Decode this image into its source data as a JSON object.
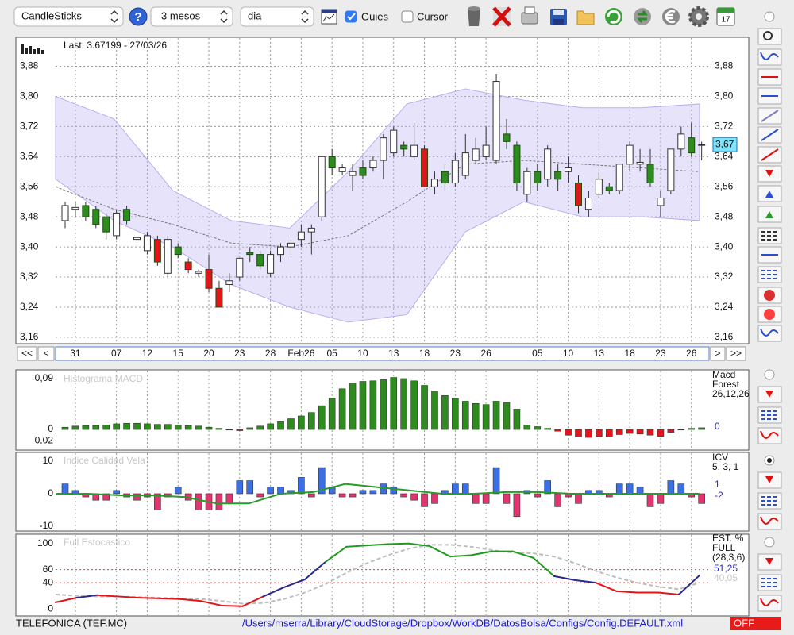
{
  "toolbar": {
    "chart_type": "CandleSticks",
    "help_icon": "?",
    "period": "3 mesos",
    "interval": "dia",
    "guides": "Guies",
    "guides_checked": true,
    "cursor": "Cursor",
    "cursor_checked": false,
    "calendar_day": "17"
  },
  "main": {
    "last": "Last: 3.67199 - 27/03/26",
    "current_label": "3,67",
    "ylim": [
      3.145,
      3.955
    ],
    "yticks": [
      {
        "value": 3.88,
        "label": "3,88"
      },
      {
        "value": 3.8,
        "label": "3,80"
      },
      {
        "value": 3.72,
        "label": "3,72"
      },
      {
        "value": 3.64,
        "label": "3,64"
      },
      {
        "value": 3.56,
        "label": "3,56"
      },
      {
        "value": 3.48,
        "label": "3,48"
      },
      {
        "value": 3.4,
        "label": "3,40"
      },
      {
        "value": 3.32,
        "label": "3,32"
      },
      {
        "value": 3.24,
        "label": "3,24"
      },
      {
        "value": 3.16,
        "label": "3,16"
      }
    ],
    "colors": {
      "up": "#ffffff",
      "down": "#2e8b1e",
      "new_low": "#e3141a",
      "band": "#b9aef0"
    },
    "dates": [
      null,
      "31",
      null,
      null,
      null,
      "07",
      null,
      null,
      "12",
      null,
      null,
      "15",
      null,
      null,
      "20",
      null,
      null,
      "23",
      null,
      null,
      "28",
      null,
      null,
      "Feb26",
      null,
      null,
      "05",
      null,
      null,
      "10",
      null,
      null,
      "13",
      null,
      null,
      "18",
      null,
      null,
      "23",
      null,
      null,
      "26",
      null,
      null,
      null,
      null,
      "05",
      null,
      null,
      "10",
      null,
      null,
      "13",
      null,
      null,
      "18",
      null,
      null,
      "23",
      null,
      null,
      "26",
      null
    ],
    "candles": [
      [
        3.47,
        3.52,
        3.45,
        3.51
      ],
      [
        3.5,
        3.52,
        3.48,
        3.505
      ],
      [
        3.51,
        3.52,
        3.47,
        3.48
      ],
      [
        3.5,
        3.51,
        3.45,
        3.46
      ],
      [
        3.48,
        3.49,
        3.42,
        3.44
      ],
      [
        3.43,
        3.5,
        3.42,
        3.49
      ],
      [
        3.5,
        3.51,
        3.46,
        3.47
      ],
      [
        3.42,
        3.43,
        3.41,
        3.425
      ],
      [
        3.39,
        3.44,
        3.38,
        3.43
      ],
      [
        3.42,
        3.43,
        3.35,
        3.36
      ],
      [
        3.33,
        3.43,
        3.32,
        3.42
      ],
      [
        3.4,
        3.41,
        3.37,
        3.38
      ],
      [
        3.36,
        3.37,
        3.33,
        3.34
      ],
      [
        3.33,
        3.34,
        3.32,
        3.335
      ],
      [
        3.34,
        3.38,
        3.28,
        3.29
      ],
      [
        3.29,
        3.31,
        3.24,
        3.24
      ],
      [
        3.3,
        3.33,
        3.28,
        3.31
      ],
      [
        3.32,
        3.37,
        3.31,
        3.37
      ],
      [
        3.385,
        3.4,
        3.36,
        3.38
      ],
      [
        3.38,
        3.39,
        3.34,
        3.35
      ],
      [
        3.33,
        3.39,
        3.32,
        3.38
      ],
      [
        3.38,
        3.41,
        3.36,
        3.4
      ],
      [
        3.4,
        3.42,
        3.38,
        3.41
      ],
      [
        3.42,
        3.46,
        3.4,
        3.44
      ],
      [
        3.44,
        3.46,
        3.38,
        3.45
      ],
      [
        3.48,
        3.64,
        3.47,
        3.64
      ],
      [
        3.64,
        3.66,
        3.59,
        3.61
      ],
      [
        3.6,
        3.62,
        3.59,
        3.61
      ],
      [
        3.59,
        3.62,
        3.55,
        3.6
      ],
      [
        3.61,
        3.63,
        3.58,
        3.59
      ],
      [
        3.61,
        3.64,
        3.6,
        3.63
      ],
      [
        3.63,
        3.7,
        3.58,
        3.69
      ],
      [
        3.65,
        3.72,
        3.64,
        3.71
      ],
      [
        3.67,
        3.68,
        3.64,
        3.66
      ],
      [
        3.64,
        3.73,
        3.63,
        3.67
      ],
      [
        3.66,
        3.67,
        3.56,
        3.56
      ],
      [
        3.56,
        3.6,
        3.54,
        3.58
      ],
      [
        3.6,
        3.62,
        3.55,
        3.57
      ],
      [
        3.57,
        3.65,
        3.56,
        3.63
      ],
      [
        3.59,
        3.7,
        3.58,
        3.65
      ],
      [
        3.63,
        3.69,
        3.62,
        3.66
      ],
      [
        3.64,
        3.72,
        3.63,
        3.67
      ],
      [
        3.63,
        3.86,
        3.62,
        3.84
      ],
      [
        3.7,
        3.74,
        3.66,
        3.68
      ],
      [
        3.67,
        3.68,
        3.55,
        3.57
      ],
      [
        3.54,
        3.61,
        3.52,
        3.6
      ],
      [
        3.6,
        3.62,
        3.55,
        3.57
      ],
      [
        3.58,
        3.67,
        3.56,
        3.66
      ],
      [
        3.6,
        3.62,
        3.55,
        3.58
      ],
      [
        3.6,
        3.64,
        3.57,
        3.61
      ],
      [
        3.57,
        3.59,
        3.49,
        3.51
      ],
      [
        3.5,
        3.55,
        3.48,
        3.53
      ],
      [
        3.54,
        3.6,
        3.53,
        3.58
      ],
      [
        3.56,
        3.57,
        3.54,
        3.55
      ],
      [
        3.55,
        3.62,
        3.54,
        3.62
      ],
      [
        3.62,
        3.68,
        3.6,
        3.67
      ],
      [
        3.62,
        3.66,
        3.6,
        3.625
      ],
      [
        3.62,
        3.66,
        3.56,
        3.57
      ],
      [
        3.51,
        3.55,
        3.48,
        3.53
      ],
      [
        3.55,
        3.66,
        3.54,
        3.66
      ],
      [
        3.66,
        3.72,
        3.64,
        3.7
      ],
      [
        3.69,
        3.73,
        3.64,
        3.65
      ],
      [
        3.67,
        3.68,
        3.63,
        3.672
      ]
    ],
    "bands": {
      "upper": [
        3.8,
        3.74,
        3.55,
        3.47,
        3.45,
        3.6,
        3.78,
        3.82,
        3.79,
        3.77,
        3.77,
        3.78
      ],
      "middle": [
        3.56,
        3.5,
        3.46,
        3.41,
        3.4,
        3.43,
        3.52,
        3.62,
        3.63,
        3.62,
        3.61,
        3.6
      ],
      "lower": [
        3.58,
        3.47,
        3.4,
        3.3,
        3.24,
        3.2,
        3.22,
        3.44,
        3.52,
        3.48,
        3.48,
        3.47
      ]
    }
  },
  "nav": {
    "first": "<<",
    "prev": "<",
    "next": ">",
    "last": ">>"
  },
  "macd": {
    "title": "Histograma MACD",
    "legend": [
      "Macd",
      "Forest",
      "26,12,26"
    ],
    "last_label": "0",
    "ylim": [
      -0.035,
      0.104
    ],
    "yticks": [
      {
        "value": 0.09,
        "label": "0,09"
      },
      0,
      {
        "value": -0.02,
        "label": "-0,02"
      }
    ],
    "colors": {
      "positive": "#2e8b1e",
      "negative": "#e3141a"
    },
    "values": [
      0.004,
      0.006,
      0.007,
      0.007,
      0.008,
      0.01,
      0.011,
      0.011,
      0.01,
      0.009,
      0.009,
      0.008,
      0.007,
      0.006,
      0.004,
      0.002,
      -0.001,
      -0.002,
      0.003,
      0.006,
      0.01,
      0.014,
      0.019,
      0.024,
      0.03,
      0.042,
      0.055,
      0.072,
      0.082,
      0.085,
      0.086,
      0.088,
      0.092,
      0.09,
      0.086,
      0.078,
      0.068,
      0.06,
      0.055,
      0.05,
      0.046,
      0.044,
      0.05,
      0.048,
      0.036,
      0.008,
      0.005,
      0.002,
      -0.003,
      -0.01,
      -0.013,
      -0.014,
      -0.012,
      -0.013,
      -0.009,
      -0.007,
      -0.008,
      -0.01,
      -0.012,
      -0.005,
      -0.001,
      0.002,
      0.003
    ]
  },
  "icv": {
    "title": "Indice Calidad Vela",
    "legend": [
      "ICV",
      "5, 3, 1"
    ],
    "last_labels": [
      "1",
      "-2"
    ],
    "ylim": [
      -11.2,
      12.4
    ],
    "yticks": [
      10,
      0,
      -10
    ],
    "colors": {
      "positive": "#3b6fe3",
      "negative": "#e23470",
      "line": "#2a9a2a"
    },
    "values": [
      3,
      1,
      -1,
      -2,
      -2,
      1,
      -1,
      -2,
      -1,
      -5,
      -1,
      2,
      -2,
      -5,
      -5,
      -5,
      -3,
      4,
      4,
      -1,
      2,
      2,
      1,
      5,
      -1,
      8,
      2,
      -1,
      -1,
      1,
      1,
      3,
      2,
      -1,
      -2,
      -4,
      -3,
      1,
      3,
      3,
      -3,
      -3,
      8,
      -3,
      -7,
      1,
      -1,
      4,
      -4,
      -1,
      -3,
      1,
      1,
      -1,
      3,
      3,
      2,
      -4,
      -3,
      4,
      3,
      -1,
      -3
    ],
    "line": [
      0,
      0,
      -0.5,
      -0.5,
      -1,
      -3,
      -3,
      0,
      0.5,
      3,
      2,
      1,
      0,
      0,
      0.5,
      0.5,
      0,
      0,
      0,
      0,
      0
    ]
  },
  "stoch": {
    "title": "Full Estocastico",
    "legend": [
      "EST. %",
      "FULL",
      "(28,3,6)"
    ],
    "last_labels": [
      "51,25",
      "40,05"
    ],
    "ylim": [
      -9.6,
      113
    ],
    "yticks": [
      100,
      60,
      40,
      0
    ],
    "levels": [
      60,
      40
    ],
    "colors": {
      "high": "#1f9a1f",
      "mid": "#2a2a8c",
      "low": "#e3141a",
      "signal": "#bdbdbd",
      "level": "#d04040"
    },
    "main": [
      10,
      17,
      21,
      19,
      17,
      16,
      15,
      12,
      5,
      4,
      19,
      33,
      45,
      72,
      95,
      97,
      99,
      100,
      96,
      80,
      82,
      88,
      88,
      78,
      50,
      44,
      40,
      27,
      25,
      25,
      22,
      51.25
    ],
    "signal": [
      22,
      20,
      19,
      19,
      18,
      17,
      16,
      15,
      12,
      8,
      9,
      15,
      25,
      38,
      55,
      70,
      82,
      92,
      98,
      98,
      95,
      90,
      86,
      85,
      80,
      70,
      58,
      48,
      40,
      34,
      30,
      40.05
    ]
  },
  "footer": {
    "ticker": "TELEFONICA (TEF.MC)",
    "config_path": "/Users/mserra/Library/CloudStorage/Dropbox/WorkDB/DatosBolsa/Configs/Config.DEFAULT.xml",
    "status": "OFF"
  }
}
